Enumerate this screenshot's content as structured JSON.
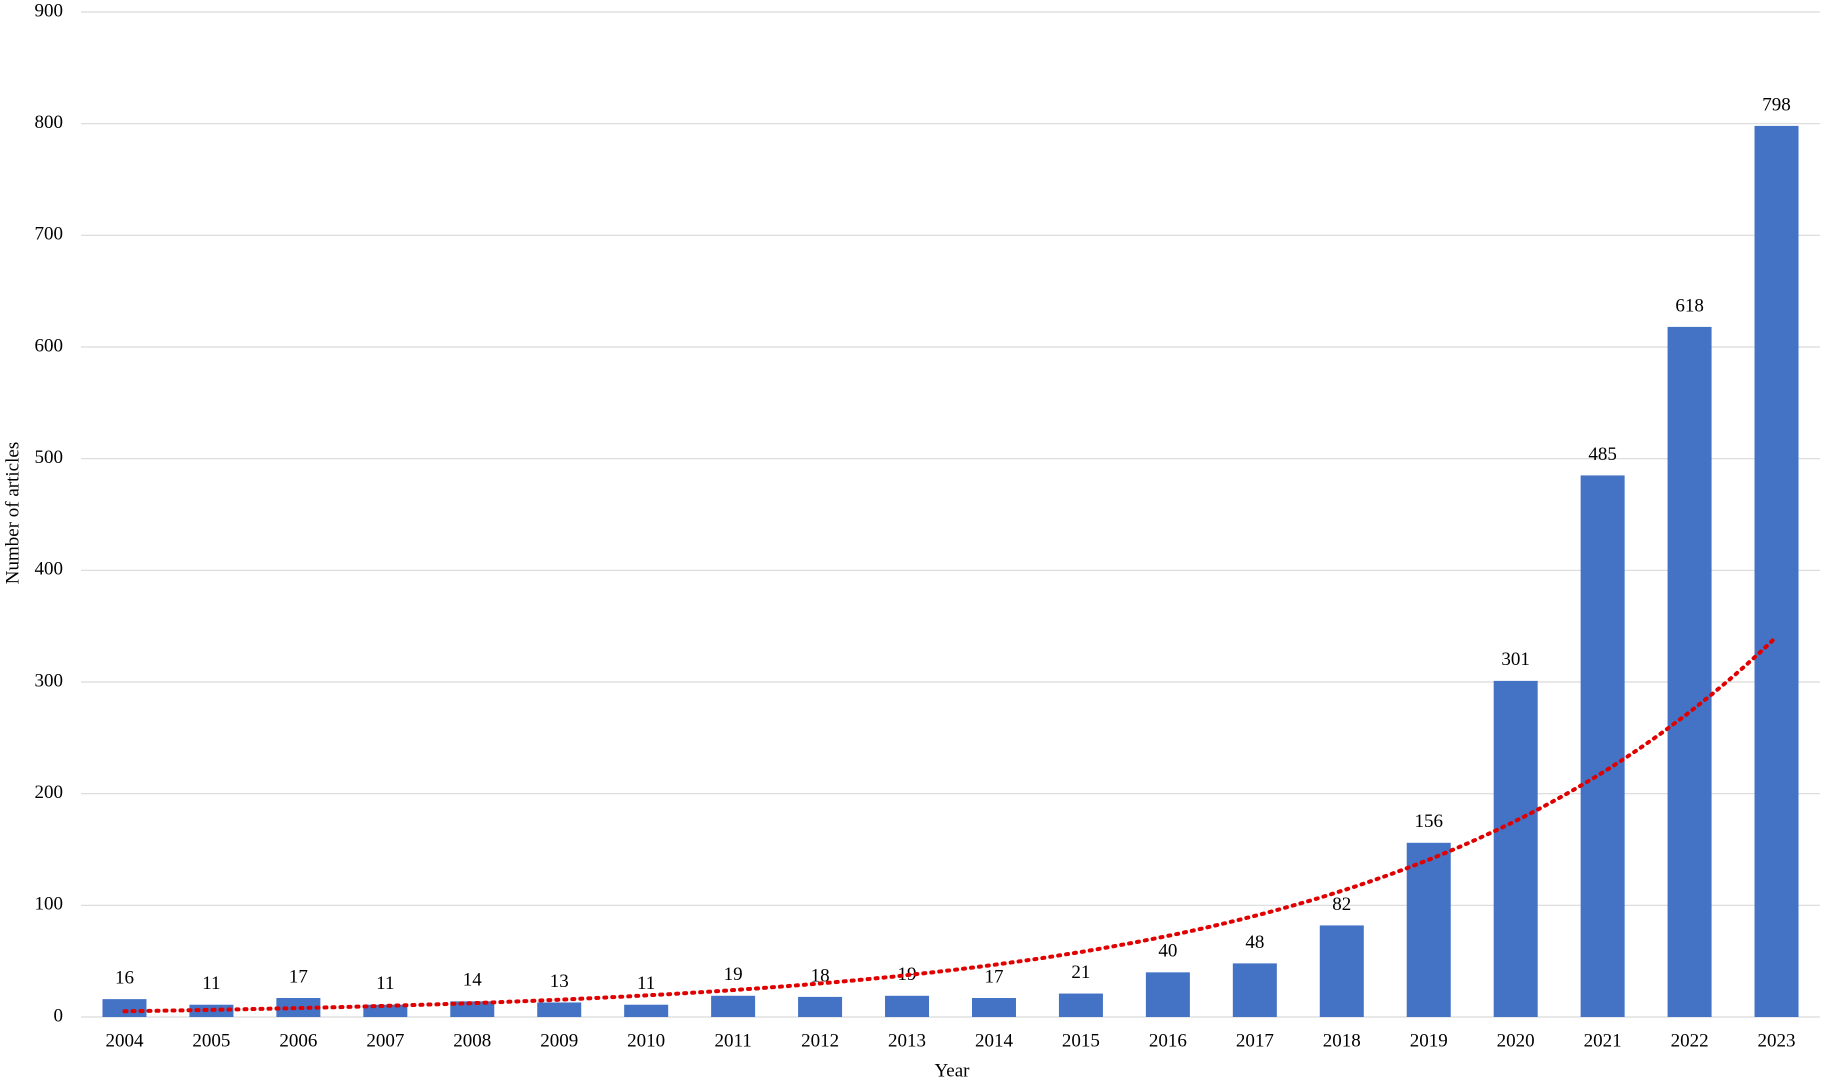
{
  "chart_data": {
    "type": "bar",
    "x_label": "Year",
    "y_label": "Number of articles",
    "categories": [
      "2004",
      "2005",
      "2006",
      "2007",
      "2008",
      "2009",
      "2010",
      "2011",
      "2012",
      "2013",
      "2014",
      "2015",
      "2016",
      "2017",
      "2018",
      "2019",
      "2020",
      "2021",
      "2022",
      "2023"
    ],
    "values": [
      16,
      11,
      17,
      11,
      14,
      13,
      11,
      19,
      18,
      19,
      17,
      21,
      40,
      48,
      82,
      156,
      301,
      485,
      618,
      798
    ],
    "color": "#4472c4",
    "ylim": [
      0,
      900
    ],
    "yticks": [
      0,
      100,
      200,
      300,
      400,
      500,
      600,
      700,
      800,
      900
    ],
    "grid": true,
    "trendline": {
      "type": "exponential",
      "color": "#e00000"
    }
  }
}
